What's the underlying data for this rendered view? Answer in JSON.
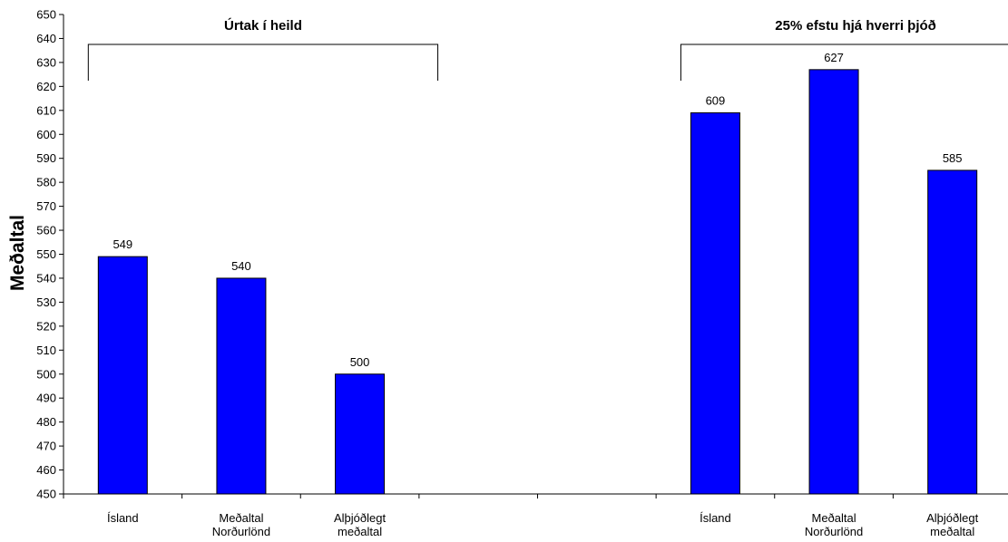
{
  "chart_data": {
    "type": "bar",
    "ylabel": "Meðaltal",
    "ylim": [
      450,
      650
    ],
    "ytick_step": 10,
    "grid": false,
    "categories": [
      [
        "Ísland"
      ],
      [
        "Meðaltal",
        "Norðurlönd"
      ],
      [
        "Alþjóðlegt",
        "meðaltal"
      ],
      [],
      [],
      [
        "Ísland"
      ],
      [
        "Meðaltal",
        "Norðurlönd"
      ],
      [
        "Alþjóðlegt",
        "meðaltal"
      ]
    ],
    "values": [
      549,
      540,
      500,
      null,
      null,
      609,
      627,
      585
    ],
    "data_labels": [
      "549",
      "540",
      "500",
      "",
      "",
      "609",
      "627",
      "585"
    ],
    "bar_color": "#0000ff",
    "bar_edge_color": "#000000",
    "groups": [
      {
        "label": "Úrtak í heild",
        "first": 0,
        "last": 2
      },
      {
        "label": "25% efstu hjá hverri þjóð",
        "first": 5,
        "last": 7
      }
    ]
  }
}
